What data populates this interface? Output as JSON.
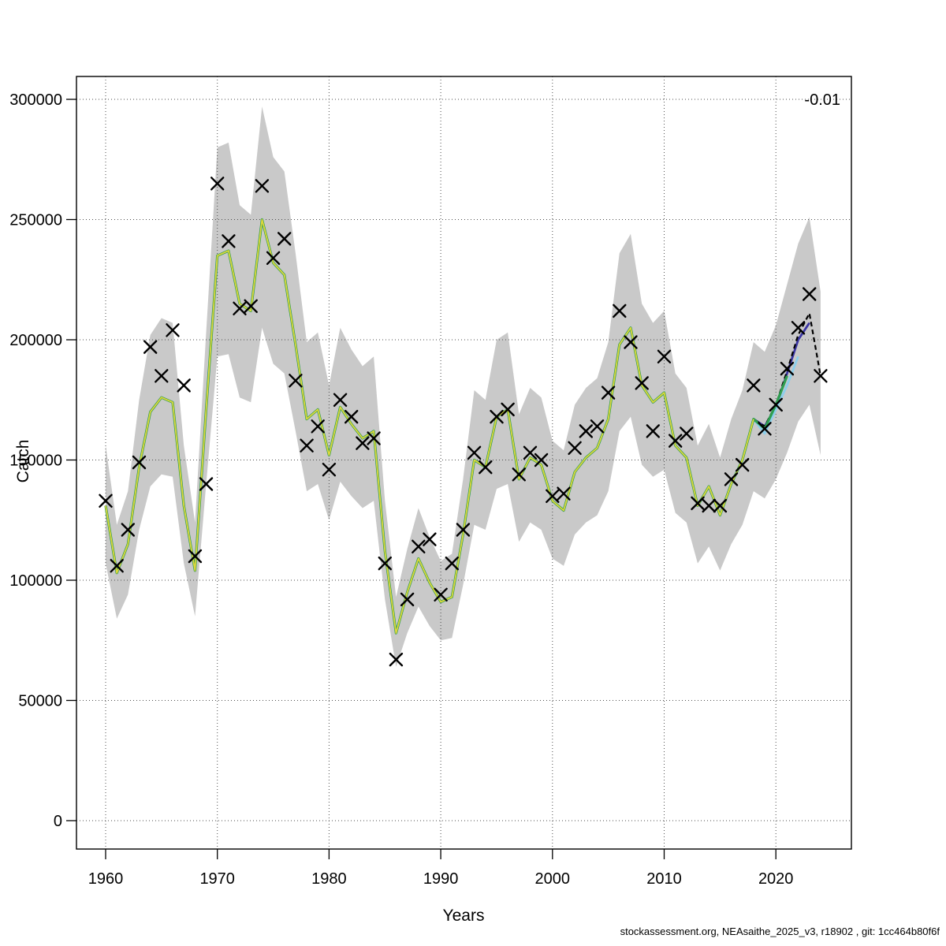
{
  "footer": {
    "text": "stockassessment.org, NEAsaithe_2025_v3, r18902 , git: 1cc464b80f6f"
  },
  "chart_data": {
    "type": "line",
    "title": "",
    "xlabel": "Years",
    "ylabel": "Catch",
    "annotation_top_right": "-0.01",
    "grid": "dotted",
    "legend_position": "none",
    "xlim": [
      1957.4,
      2026.7
    ],
    "ylim": [
      -11800,
      309500
    ],
    "x_ticks": [
      1960,
      1970,
      1980,
      1990,
      2000,
      2010,
      2020
    ],
    "y_ticks": [
      0,
      50000,
      100000,
      150000,
      200000,
      250000,
      300000
    ],
    "colors": {
      "band": "#c9c9c9",
      "grid": "#4d4d4d",
      "marker": "#000000",
      "fit_yellow": "#ded73b",
      "fit_green": "#2e9e50",
      "fit_cyan": "#8ccfec",
      "fit_navy": "#3a35a3",
      "fit_black": "#000000"
    },
    "years": [
      1960,
      1961,
      1962,
      1963,
      1964,
      1965,
      1966,
      1967,
      1968,
      1969,
      1970,
      1971,
      1972,
      1973,
      1974,
      1975,
      1976,
      1977,
      1978,
      1979,
      1980,
      1981,
      1982,
      1983,
      1984,
      1985,
      1986,
      1987,
      1988,
      1989,
      1990,
      1991,
      1992,
      1993,
      1994,
      1995,
      1996,
      1997,
      1998,
      1999,
      2000,
      2001,
      2002,
      2003,
      2004,
      2005,
      2006,
      2007,
      2008,
      2009,
      2010,
      2011,
      2012,
      2013,
      2014,
      2015,
      2016,
      2017,
      2018,
      2019,
      2020,
      2021,
      2022,
      2023,
      2024
    ],
    "observed_catch": [
      133000,
      106000,
      121000,
      149000,
      197000,
      185000,
      204000,
      181000,
      110000,
      140000,
      265000,
      241000,
      213000,
      214000,
      264000,
      234000,
      242000,
      183000,
      156000,
      164000,
      146000,
      175000,
      168000,
      157000,
      159000,
      107000,
      67000,
      92000,
      114000,
      117000,
      94000,
      107000,
      121000,
      153000,
      147000,
      168000,
      171000,
      144000,
      153000,
      150000,
      135000,
      136000,
      155000,
      162000,
      164000,
      178000,
      212000,
      199000,
      182000,
      162000,
      193000,
      158000,
      161000,
      132000,
      131000,
      131000,
      142000,
      148000,
      181000,
      163000,
      173000,
      188000,
      205000,
      219000,
      185000
    ],
    "confidence_band": {
      "start_year": 1960,
      "upper": [
        156000,
        123000,
        137000,
        175000,
        202000,
        209000,
        207000,
        156000,
        124000,
        203000,
        280000,
        282000,
        256000,
        252000,
        297000,
        276000,
        270000,
        236000,
        199000,
        203000,
        181000,
        205000,
        196000,
        189000,
        193000,
        133000,
        93000,
        113000,
        130000,
        118000,
        108000,
        111000,
        142000,
        179000,
        175000,
        200000,
        203000,
        169000,
        180000,
        176000,
        158000,
        154000,
        173000,
        180000,
        184000,
        199000,
        236000,
        244000,
        215000,
        207000,
        212000,
        186000,
        180000,
        156000,
        165000,
        151000,
        167000,
        179000,
        199000,
        195000,
        206000,
        223000,
        240000,
        251000,
        220000
      ],
      "lower": [
        107000,
        84000,
        94000,
        121000,
        139000,
        144000,
        143000,
        107000,
        85000,
        140000,
        193000,
        194000,
        176000,
        174000,
        205000,
        190000,
        186000,
        162000,
        137000,
        140000,
        125000,
        141000,
        135000,
        130000,
        133000,
        92000,
        64000,
        78000,
        89000,
        81000,
        75000,
        76000,
        98000,
        123000,
        121000,
        138000,
        140000,
        116000,
        124000,
        121000,
        109000,
        106000,
        119000,
        124000,
        127000,
        137000,
        162000,
        168000,
        148000,
        143000,
        146000,
        128000,
        124000,
        107000,
        114000,
        104000,
        115000,
        123000,
        137000,
        134000,
        142000,
        153000,
        166000,
        173000,
        152000
      ]
    },
    "fitted_series": [
      {
        "name": "fit-navy",
        "color_key": "fit_navy",
        "start_year": 2018,
        "width": 2.8,
        "dash": null,
        "values": [
          167000,
          164000,
          172000,
          186000,
          200000,
          207000
        ]
      },
      {
        "name": "fit-black-dashed",
        "color_key": "fit_black",
        "start_year": 2016,
        "width": 2.2,
        "dash": "6 4",
        "values": [
          140000,
          150000,
          167000,
          164000,
          173000,
          187000,
          202000,
          211000,
          185000
        ]
      },
      {
        "name": "fit-cyan",
        "color_key": "fit_cyan",
        "start_year": 2018,
        "width": 2.8,
        "dash": null,
        "values": [
          167000,
          161000,
          171000,
          181000,
          193000
        ]
      },
      {
        "name": "fit-green",
        "color_key": "fit_green",
        "start_year": 1960,
        "width": 3.2,
        "dash": null,
        "values": [
          131000,
          103000,
          115000,
          147000,
          170000,
          176000,
          174000,
          131000,
          104000,
          171000,
          235000,
          237000,
          215000,
          212000,
          250000,
          232000,
          227000,
          198000,
          167000,
          171000,
          152000,
          172000,
          165000,
          159000,
          162000,
          112000,
          78000,
          95000,
          109000,
          99000,
          91000,
          93000,
          119000,
          150000,
          147000,
          168000,
          171000,
          142000,
          151000,
          148000,
          133000,
          129000,
          145000,
          151000,
          155000,
          167000,
          198000,
          205000,
          181000,
          174000,
          178000,
          156000,
          151000,
          131000,
          139000,
          127000,
          140000,
          150000,
          167000,
          163000,
          173000,
          185000
        ]
      },
      {
        "name": "fit-yellow",
        "color_key": "fit_yellow",
        "start_year": 1960,
        "width": 1.8,
        "dash": null,
        "values": [
          131000,
          103000,
          115000,
          147000,
          170000,
          176000,
          174000,
          131000,
          104000,
          171000,
          235000,
          237000,
          215000,
          212000,
          250000,
          232000,
          227000,
          198000,
          167000,
          171000,
          152000,
          172000,
          165000,
          159000,
          162000,
          112000,
          78000,
          95000,
          109000,
          99000,
          91000,
          93000,
          119000,
          150000,
          147000,
          168000,
          171000,
          142000,
          151000,
          148000,
          133000,
          129000,
          145000,
          151000,
          155000,
          167000,
          198000,
          205000,
          181000,
          174000,
          178000,
          156000,
          151000,
          131000,
          139000,
          127000,
          140000,
          150000,
          167000
        ]
      }
    ]
  }
}
